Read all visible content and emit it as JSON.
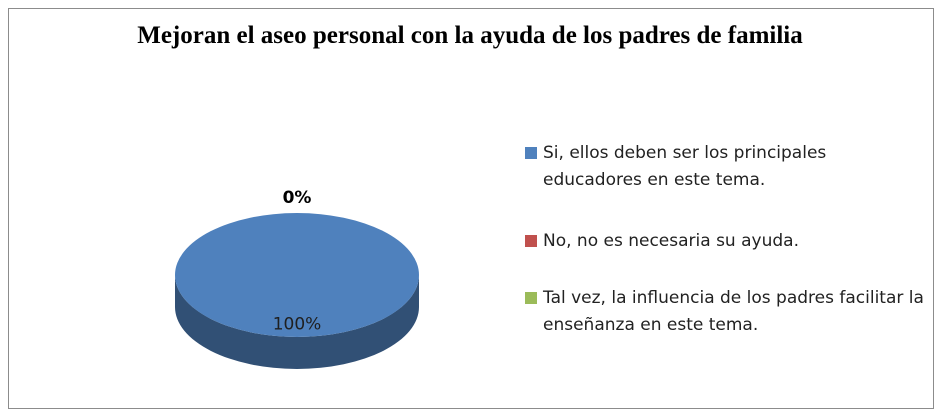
{
  "chart_data": {
    "type": "pie",
    "title": "Mejoran el aseo personal con la ayuda de los padres de familia",
    "categories": [
      "Si, ellos deben ser los principales educadores en este tema.",
      "No, no es necesaria su ayuda.",
      "Tal vez, la influencia de los padres facilitar la enseñanza en este tema."
    ],
    "values": [
      100,
      0,
      0
    ],
    "value_labels": [
      "100%",
      "0%",
      null
    ],
    "colors": [
      "#4f81bd",
      "#c0504d",
      "#9bbb59"
    ],
    "legend": "right"
  }
}
